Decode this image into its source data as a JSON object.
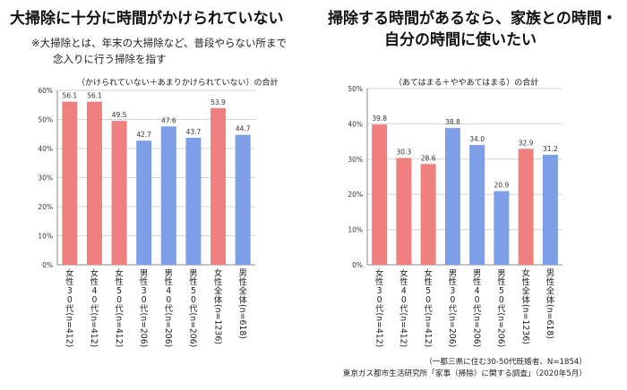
{
  "left_title": "大掃除に十分に時間がかけられていない",
  "left_note": [
    "※大掃除とは、年末の大掃除など、普段やらない所まで",
    "念入りに行う掃除を指す"
  ],
  "right_title": [
    "掃除する時間があるなら、家族との時間・",
    "自分の時間に使いたい"
  ],
  "source": [
    "（一都三県に住む30-50代既婚者、N=1854）",
    "東京ガス都市生活研究所「家事（掃除）に関する調査」（2020年5月）"
  ],
  "colors": {
    "female": "#f08080",
    "male": "#7f9ee8"
  },
  "chart_data": [
    {
      "type": "bar",
      "title": "（かけられていない＋あまりかけられていない）の合計",
      "categories": [
        "女性30代(n=412)",
        "女性40代(n=412)",
        "女性50代(n=412)",
        "男性30代(n=206)",
        "男性40代(n=206)",
        "男性50代(n=206)",
        "女性全体(n=1236)",
        "男性全体(n=618)"
      ],
      "values": [
        56.1,
        56.1,
        49.5,
        42.7,
        47.6,
        43.7,
        53.9,
        44.7
      ],
      "value_labels": [
        "56.1",
        "56.1",
        "49.5",
        "42.7",
        "47.6",
        "43.7",
        "53.9",
        "44.7"
      ],
      "groups": [
        "female",
        "female",
        "female",
        "male",
        "male",
        "male",
        "female",
        "male"
      ],
      "yticks": [
        "0%",
        "10%",
        "20%",
        "30%",
        "40%",
        "50%",
        "60%"
      ],
      "ylim": [
        0,
        60
      ],
      "grid": true
    },
    {
      "type": "bar",
      "title": "（あてはまる＋ややあてはまる）の合計",
      "categories": [
        "女性30代(n=412)",
        "女性40代(n=412)",
        "女性50代(n=412)",
        "男性30代(n=206)",
        "男性40代(n=206)",
        "男性50代(n=206)",
        "女性全体(n=1236)",
        "男性全体(n=618)"
      ],
      "values": [
        39.8,
        30.3,
        28.6,
        38.8,
        34.0,
        20.9,
        32.9,
        31.2
      ],
      "value_labels": [
        "39.8",
        "30.3",
        "28.6",
        "38.8",
        "34.0",
        "20.9",
        "32.9",
        "31.2"
      ],
      "groups": [
        "female",
        "female",
        "female",
        "male",
        "male",
        "male",
        "female",
        "male"
      ],
      "yticks": [
        "0%",
        "10%",
        "20%",
        "30%",
        "40%",
        "50%"
      ],
      "ylim": [
        0,
        50
      ],
      "grid": true
    }
  ]
}
